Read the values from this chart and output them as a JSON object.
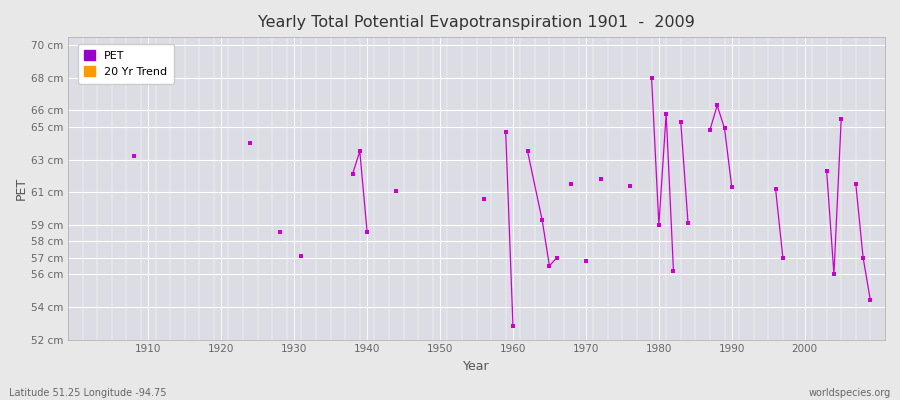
{
  "title": "Yearly Total Potential Evapotranspiration 1901  -  2009",
  "xlabel": "Year",
  "ylabel": "PET",
  "bottom_left_label": "Latitude 51.25 Longitude -94.75",
  "bottom_right_label": "worldspecies.org",
  "ylim": [
    52,
    70.5
  ],
  "ytick_labels": [
    "52 cm",
    "54 cm",
    "56 cm",
    "57 cm",
    "58 cm",
    "59 cm",
    "61 cm",
    "63 cm",
    "65 cm",
    "66 cm",
    "68 cm",
    "70 cm"
  ],
  "ytick_values": [
    52,
    54,
    56,
    57,
    58,
    59,
    61,
    63,
    65,
    66,
    68,
    70
  ],
  "xlim": [
    1899,
    2011
  ],
  "background_color": "#e8e8e8",
  "plot_bg_color": "#dcdce4",
  "grid_color": "#ffffff",
  "line_color": "#cc00cc",
  "marker_color": "#cc00cc",
  "segments": [
    [
      [
        1908,
        63.2
      ]
    ],
    [
      [
        1924,
        64.0
      ]
    ],
    [
      [
        1928,
        58.6
      ]
    ],
    [
      [
        1931,
        57.1
      ]
    ],
    [
      [
        1938,
        62.1
      ],
      [
        1939,
        63.5
      ],
      [
        1940,
        58.6
      ]
    ],
    [
      [
        1944,
        61.1
      ]
    ],
    [
      [
        1956,
        60.6
      ]
    ],
    [
      [
        1959,
        64.7
      ],
      [
        1960,
        52.8
      ]
    ],
    [
      [
        1962,
        63.5
      ],
      [
        1964,
        59.3
      ],
      [
        1965,
        56.5
      ],
      [
        1966,
        57.0
      ]
    ],
    [
      [
        1968,
        61.5
      ]
    ],
    [
      [
        1970,
        56.8
      ]
    ],
    [
      [
        1972,
        61.8
      ]
    ],
    [
      [
        1976,
        61.4
      ]
    ],
    [
      [
        1979,
        68.0
      ],
      [
        1980,
        59.0
      ],
      [
        1981,
        65.8
      ],
      [
        1982,
        56.2
      ]
    ],
    [
      [
        1983,
        65.3
      ],
      [
        1984,
        59.1
      ]
    ],
    [
      [
        1987,
        64.8
      ],
      [
        1988,
        66.3
      ],
      [
        1989,
        64.9
      ],
      [
        1990,
        61.3
      ]
    ],
    [
      [
        1996,
        61.2
      ],
      [
        1997,
        57.0
      ]
    ],
    [
      [
        2003,
        62.3
      ],
      [
        2004,
        56.0
      ],
      [
        2005,
        65.5
      ]
    ],
    [
      [
        2007,
        61.5
      ],
      [
        2008,
        57.0
      ],
      [
        2009,
        54.4
      ]
    ]
  ],
  "legend_pet_color": "#9900cc",
  "legend_trend_color": "#ff9900"
}
